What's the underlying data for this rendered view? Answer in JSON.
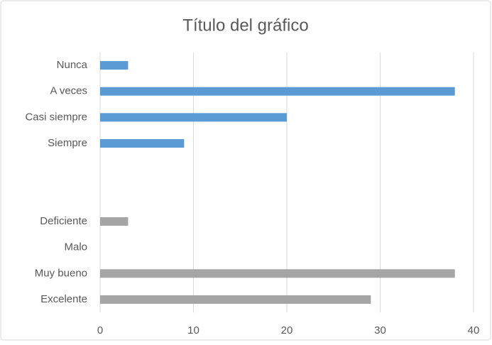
{
  "chart_data": {
    "type": "hbar",
    "title": "Título del gráfico",
    "categories": [
      "Nunca",
      "A veces",
      "Casi siempre",
      "Siempre",
      null,
      null,
      "Deficiente",
      "Malo",
      "Muy bueno",
      "Excelente"
    ],
    "values": [
      3,
      38,
      20,
      9,
      null,
      null,
      3,
      0,
      38,
      29
    ],
    "colors": [
      "#5b9bd5",
      "#5b9bd5",
      "#5b9bd5",
      "#5b9bd5",
      null,
      null,
      "#a5a5a5",
      "#a5a5a5",
      "#a5a5a5",
      "#a5a5a5"
    ],
    "xlim": [
      0,
      40
    ],
    "xticks": [
      0,
      10,
      20,
      30,
      40
    ],
    "grid": true
  }
}
